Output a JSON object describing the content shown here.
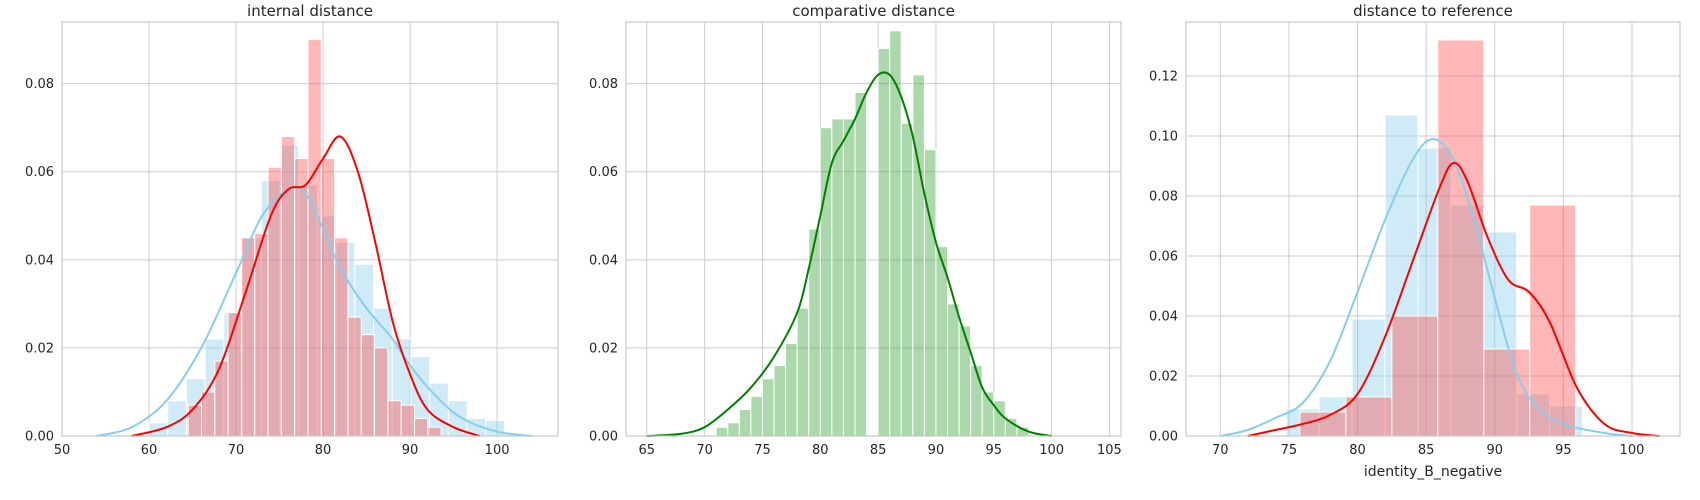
{
  "chart_data": [
    {
      "type": "histogram",
      "title": "internal distance",
      "xlabel": "",
      "ylabel": "",
      "xlim": [
        50,
        107
      ],
      "ylim": [
        0,
        0.094
      ],
      "xticks": [
        50,
        60,
        70,
        80,
        90,
        100
      ],
      "yticks": [
        0.0,
        0.02,
        0.04,
        0.06,
        0.08
      ],
      "grid": true,
      "series": [
        {
          "color": "#87ceeb",
          "bin_start": 60,
          "bin_width": 2.15,
          "values": [
            0.003,
            0.008,
            0.013,
            0.022,
            0.028,
            0.045,
            0.058,
            0.066,
            0.057,
            0.05,
            0.044,
            0.039,
            0.029,
            0.022,
            0.018,
            0.012,
            0.008,
            0.004,
            0.0035,
            0.0005
          ],
          "kde": [
            [
              54.0,
              0.0
            ],
            [
              58.0,
              0.002
            ],
            [
              62.0,
              0.008
            ],
            [
              66.0,
              0.02
            ],
            [
              70.0,
              0.037
            ],
            [
              73.0,
              0.05
            ],
            [
              76.0,
              0.056
            ],
            [
              78.0,
              0.055
            ],
            [
              80.0,
              0.047
            ],
            [
              82.0,
              0.038
            ],
            [
              85.0,
              0.029
            ],
            [
              88.0,
              0.022
            ],
            [
              90.0,
              0.016
            ],
            [
              93.0,
              0.009
            ],
            [
              96.0,
              0.004
            ],
            [
              100.0,
              0.001
            ],
            [
              104.0,
              0.0
            ]
          ]
        },
        {
          "color": "#ff4c4c",
          "bin_start": 64.5,
          "bin_width": 1.53,
          "values": [
            0.007,
            0.01,
            0.017,
            0.028,
            0.045,
            0.046,
            0.061,
            0.068,
            0.063,
            0.09,
            0.063,
            0.045,
            0.027,
            0.023,
            0.02,
            0.008,
            0.007,
            0.004,
            0.002
          ],
          "kde": [
            [
              58.0,
              0.0
            ],
            [
              62.0,
              0.002
            ],
            [
              65.0,
              0.006
            ],
            [
              68.0,
              0.015
            ],
            [
              71.0,
              0.032
            ],
            [
              74.0,
              0.05
            ],
            [
              76.0,
              0.056
            ],
            [
              78.0,
              0.057
            ],
            [
              80.0,
              0.063
            ],
            [
              82.0,
              0.068
            ],
            [
              84.0,
              0.06
            ],
            [
              86.0,
              0.044
            ],
            [
              88.0,
              0.026
            ],
            [
              90.0,
              0.014
            ],
            [
              92.0,
              0.006
            ],
            [
              95.0,
              0.002
            ],
            [
              98.0,
              0.0
            ]
          ]
        }
      ]
    },
    {
      "type": "histogram",
      "title": "comparative distance",
      "xlabel": "",
      "ylabel": "",
      "xlim": [
        63.2,
        106
      ],
      "ylim": [
        0,
        0.094
      ],
      "xticks": [
        65,
        70,
        75,
        80,
        85,
        90,
        95,
        100,
        105
      ],
      "yticks": [
        0.0,
        0.02,
        0.04,
        0.06,
        0.08
      ],
      "grid": true,
      "series": [
        {
          "color": "#2ca02c",
          "bin_start": 71.0,
          "bin_width": 1.0,
          "values": [
            0.002,
            0.003,
            0.006,
            0.009,
            0.013,
            0.016,
            0.021,
            0.029,
            0.047,
            0.07,
            0.072,
            0.072,
            0.078,
            0.0,
            0.088,
            0.092,
            0.071,
            0.082,
            0.065,
            0.043,
            0.03,
            0.025,
            0.016,
            0.01,
            0.008,
            0.004,
            0.002
          ],
          "kde": [
            [
              65.0,
              0.0
            ],
            [
              68.0,
              0.0005
            ],
            [
              70.0,
              0.002
            ],
            [
              72.0,
              0.006
            ],
            [
              74.0,
              0.011
            ],
            [
              76.0,
              0.018
            ],
            [
              78.0,
              0.028
            ],
            [
              79.0,
              0.038
            ],
            [
              80.0,
              0.05
            ],
            [
              81.0,
              0.062
            ],
            [
              82.0,
              0.067
            ],
            [
              83.0,
              0.072
            ],
            [
              84.0,
              0.078
            ],
            [
              85.0,
              0.082
            ],
            [
              86.0,
              0.082
            ],
            [
              87.0,
              0.077
            ],
            [
              88.0,
              0.068
            ],
            [
              89.0,
              0.055
            ],
            [
              90.0,
              0.044
            ],
            [
              91.0,
              0.036
            ],
            [
              92.0,
              0.027
            ],
            [
              93.0,
              0.019
            ],
            [
              94.0,
              0.011
            ],
            [
              95.0,
              0.007
            ],
            [
              96.0,
              0.004
            ],
            [
              98.0,
              0.001
            ],
            [
              100.0,
              0.0
            ]
          ]
        }
      ]
    },
    {
      "type": "histogram",
      "title": "distance to reference",
      "xlabel": "identity_B_negative",
      "ylabel": "",
      "xlim": [
        67.5,
        103.5
      ],
      "ylim": [
        0,
        0.138
      ],
      "xticks": [
        70,
        75,
        80,
        85,
        90,
        95,
        100
      ],
      "yticks": [
        0.0,
        0.02,
        0.04,
        0.06,
        0.08,
        0.1,
        0.12
      ],
      "grid": true,
      "series": [
        {
          "color": "#87ceeb",
          "bin_start": 74.8,
          "bin_width": 2.4,
          "values": [
            0.009,
            0.013,
            0.039,
            0.107,
            0.096,
            0.077,
            0.068,
            0.014,
            0.01
          ],
          "kde": [
            [
              70.0,
              0.0
            ],
            [
              72.0,
              0.002
            ],
            [
              74.0,
              0.006
            ],
            [
              76.0,
              0.011
            ],
            [
              78.0,
              0.025
            ],
            [
              80.0,
              0.048
            ],
            [
              82.0,
              0.072
            ],
            [
              84.0,
              0.092
            ],
            [
              85.5,
              0.099
            ],
            [
              87.0,
              0.092
            ],
            [
              88.5,
              0.072
            ],
            [
              90.0,
              0.046
            ],
            [
              91.5,
              0.022
            ],
            [
              93.0,
              0.01
            ],
            [
              95.0,
              0.004
            ],
            [
              98.0,
              0.001
            ],
            [
              100.0,
              0.0
            ]
          ]
        },
        {
          "color": "#ff4c4c",
          "bin_start": 75.8,
          "bin_width": 3.35,
          "values": [
            0.008,
            0.013,
            0.04,
            0.132,
            0.029,
            0.077
          ],
          "kde": [
            [
              72.0,
              0.0
            ],
            [
              74.0,
              0.002
            ],
            [
              76.0,
              0.004
            ],
            [
              78.0,
              0.007
            ],
            [
              80.0,
              0.014
            ],
            [
              82.0,
              0.033
            ],
            [
              84.0,
              0.058
            ],
            [
              86.0,
              0.083
            ],
            [
              87.0,
              0.091
            ],
            [
              88.0,
              0.085
            ],
            [
              89.5,
              0.066
            ],
            [
              91.0,
              0.052
            ],
            [
              92.5,
              0.048
            ],
            [
              94.0,
              0.038
            ],
            [
              96.0,
              0.016
            ],
            [
              98.0,
              0.004
            ],
            [
              100.0,
              0.001
            ],
            [
              102.0,
              0.0
            ]
          ]
        }
      ]
    }
  ]
}
